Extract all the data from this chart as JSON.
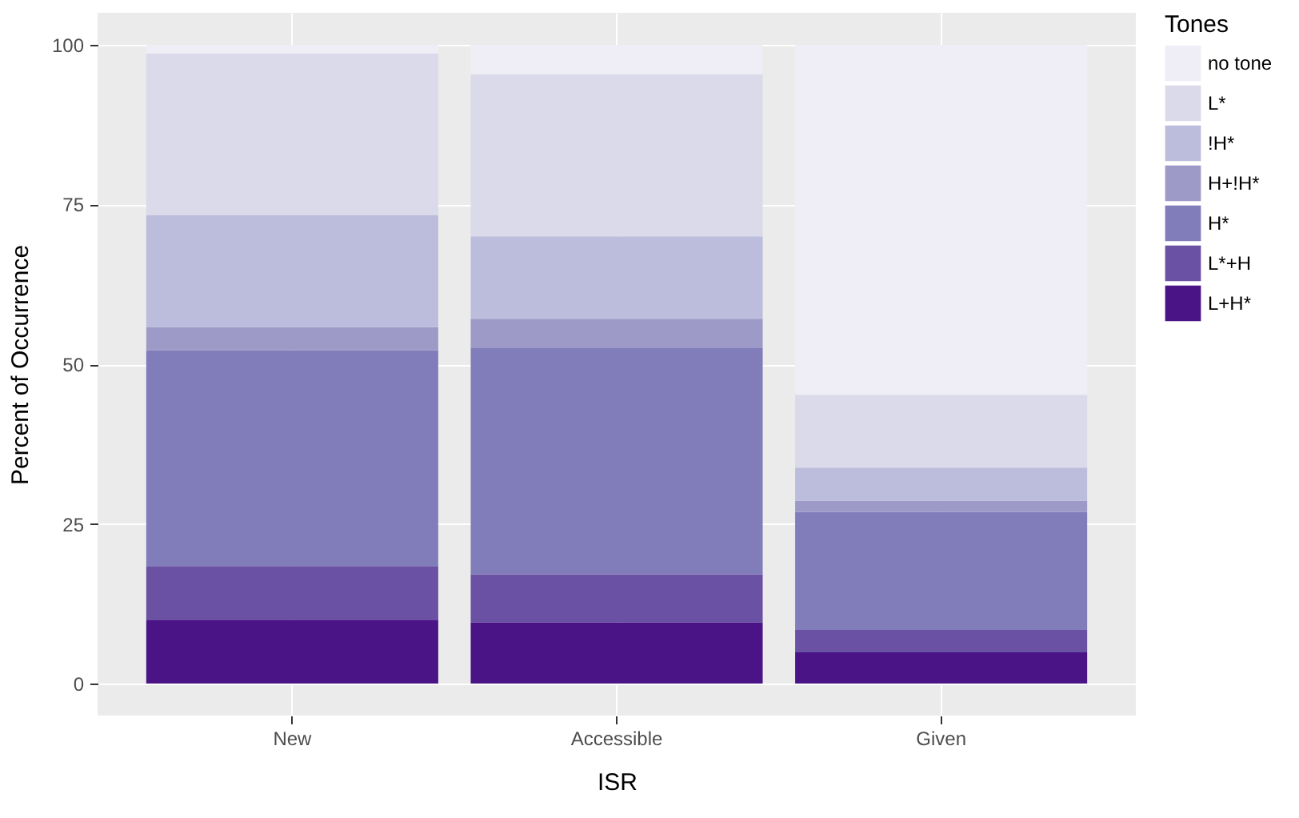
{
  "chart_data": {
    "type": "bar",
    "stacked": true,
    "xlabel": "ISR",
    "ylabel": "Percent of Occurrence",
    "legend_title": "Tones",
    "categories": [
      "New",
      "Accessible",
      "Given"
    ],
    "series": [
      {
        "name": "L+H*",
        "color": "#4a1486",
        "values": [
          10.0,
          9.6,
          4.9
        ]
      },
      {
        "name": "L*+H",
        "color": "#6a51a3",
        "values": [
          8.4,
          7.5,
          3.5
        ]
      },
      {
        "name": "H*",
        "color": "#807dba",
        "values": [
          33.8,
          35.5,
          18.5
        ]
      },
      {
        "name": "H+!H*",
        "color": "#9e9ac8",
        "values": [
          3.6,
          4.5,
          1.7
        ]
      },
      {
        "name": "!H*",
        "color": "#bcbddc",
        "values": [
          17.5,
          12.9,
          5.2
        ]
      },
      {
        "name": "L*",
        "color": "#dadaeb",
        "values": [
          25.3,
          25.4,
          11.4
        ]
      },
      {
        "name": "no tone",
        "color": "#efedf5",
        "values": [
          1.4,
          4.6,
          54.8
        ]
      }
    ],
    "ylim": [
      -5,
      105
    ],
    "yticks": [
      0,
      25,
      50,
      75,
      100
    ],
    "grid": true,
    "legend": "right"
  }
}
